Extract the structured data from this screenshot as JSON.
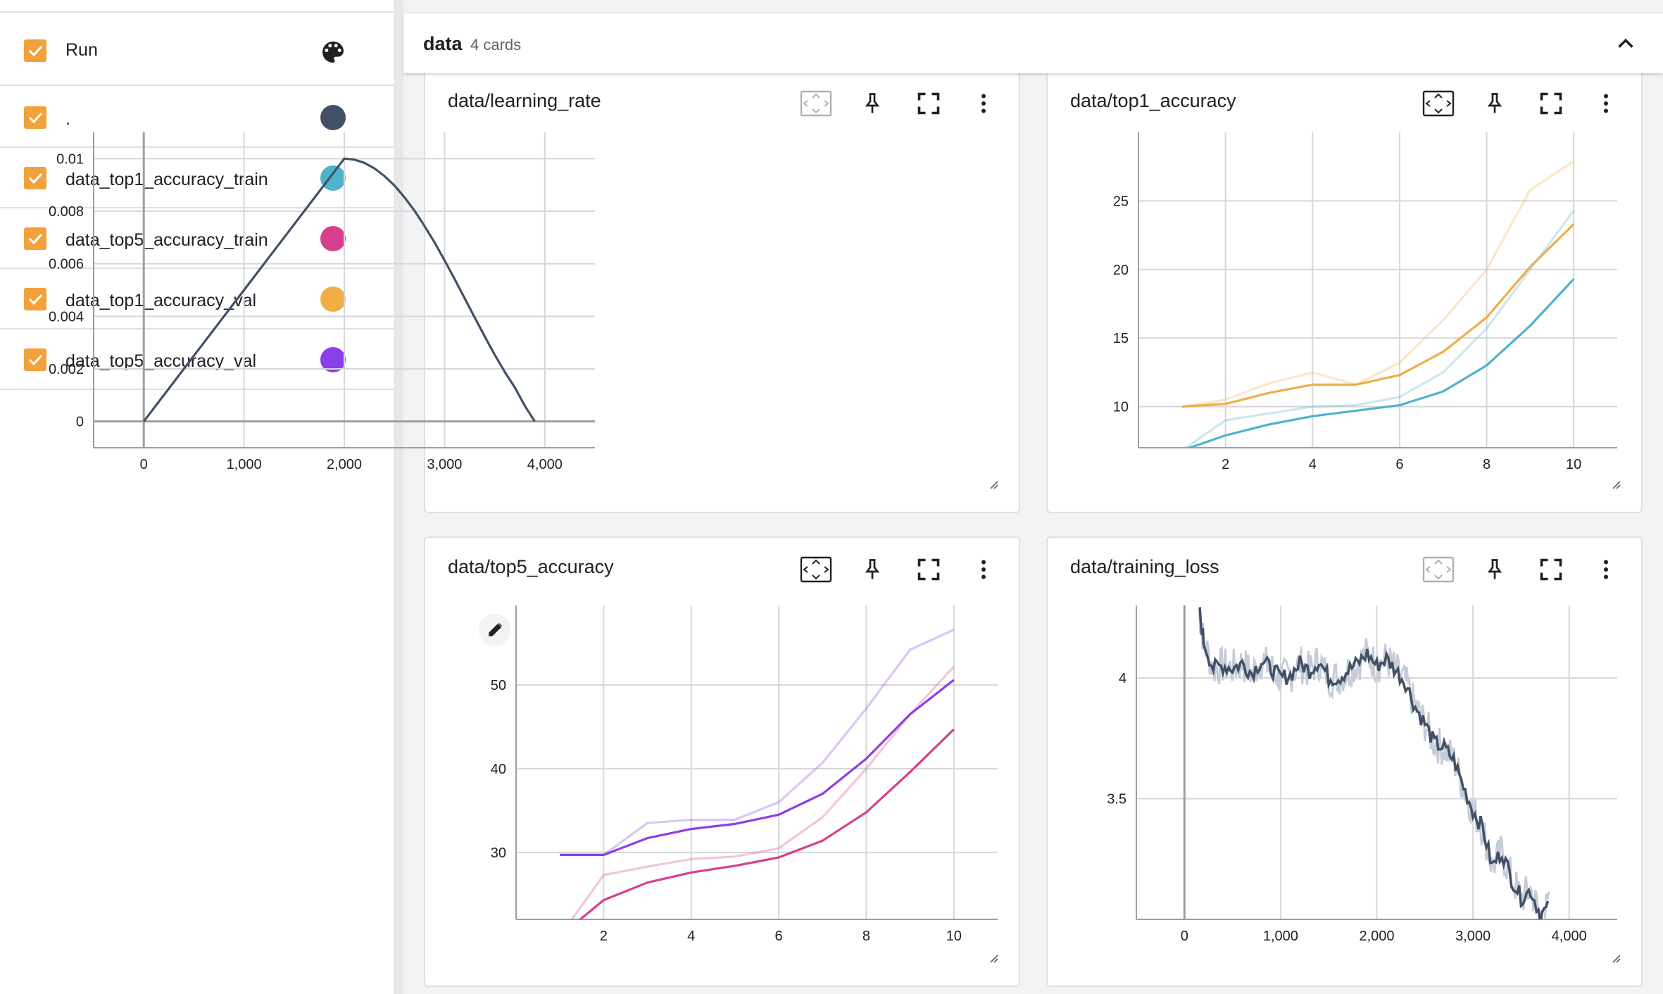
{
  "sidebar": {
    "header_label": "Run",
    "runs": [
      {
        "label": ".",
        "color": "#425066"
      },
      {
        "label": "data_top1_accuracy_train",
        "color": "#4db3cc"
      },
      {
        "label": "data_top5_accuracy_train",
        "color": "#d63f8c"
      },
      {
        "label": "data_top1_accuracy_val",
        "color": "#f0ae45"
      },
      {
        "label": "data_top5_accuracy_val",
        "color": "#8b3fe6"
      }
    ],
    "checkbox_color": "#f2a13b",
    "header_icon": "palette-icon"
  },
  "group": {
    "name": "data",
    "count": "4 cards",
    "collapse_icon": "chevron-up-icon"
  },
  "cards": [
    {
      "title": "data/learning_rate",
      "tools": [
        "fit-domain-icon",
        "pin-icon",
        "fullscreen-icon",
        "more-vert-icon"
      ],
      "chart_data": {
        "type": "line",
        "xlim": [
          -500,
          4500
        ],
        "ylim": [
          -0.001,
          0.011
        ],
        "x_ticks": [
          "0",
          "1,000",
          "2,000",
          "3,000",
          "4,000"
        ],
        "y_ticks": [
          "0",
          "0.002",
          "0.004",
          "0.006",
          "0.008",
          "0.01"
        ],
        "series": [
          {
            "color": "#425066",
            "x": [
              0,
              500,
              1000,
              1500,
              2000,
              2100,
              2200,
              2300,
              2400,
              2500,
              2600,
              2700,
              2800,
              2900,
              3000,
              3100,
              3200,
              3300,
              3400,
              3500,
              3600,
              3700,
              3800,
              3900
            ],
            "y": [
              0,
              0.0025,
              0.005,
              0.0075,
              0.01,
              0.00996,
              0.00984,
              0.00963,
              0.00934,
              0.00898,
              0.00853,
              0.00802,
              0.00744,
              0.00681,
              0.00613,
              0.00542,
              0.00469,
              0.00396,
              0.00324,
              0.00254,
              0.00189,
              0.0013,
              0.0006,
              0
            ]
          }
        ]
      }
    },
    {
      "title": "data/top1_accuracy",
      "tools": [
        "fit-domain-icon",
        "pin-icon",
        "fullscreen-icon",
        "more-vert-icon"
      ],
      "chart_data": {
        "type": "line",
        "xlim": [
          0,
          11
        ],
        "ylim": [
          7,
          30
        ],
        "x_ticks": [
          "2",
          "4",
          "6",
          "8",
          "10"
        ],
        "y_ticks": [
          "10",
          "15",
          "20",
          "25"
        ],
        "series": [
          {
            "color": "#f0ae45",
            "faded": true,
            "x": [
              1,
              2,
              3,
              4,
              5,
              6,
              7,
              8,
              9,
              10
            ],
            "y": [
              10,
              10.5,
              11.7,
              12.5,
              11.6,
              13.2,
              16.3,
              20,
              25.8,
              27.9
            ]
          },
          {
            "color": "#4db3cc",
            "faded": true,
            "x": [
              1,
              2,
              3,
              4,
              5,
              6,
              7,
              8,
              9,
              10
            ],
            "y": [
              6.8,
              9,
              9.5,
              10,
              10.1,
              10.7,
              12.5,
              15.7,
              20,
              24.3
            ]
          },
          {
            "color": "#f0ae45",
            "faded": false,
            "x": [
              1,
              2,
              3,
              4,
              5,
              6,
              7,
              8,
              9,
              10
            ],
            "y": [
              10,
              10.2,
              11,
              11.6,
              11.6,
              12.3,
              14,
              16.5,
              20.2,
              23.3
            ]
          },
          {
            "color": "#4db3cc",
            "faded": false,
            "x": [
              1,
              2,
              3,
              4,
              5,
              6,
              7,
              8,
              9,
              10
            ],
            "y": [
              6.8,
              7.9,
              8.7,
              9.3,
              9.7,
              10.1,
              11.1,
              13,
              15.9,
              19.3
            ]
          }
        ]
      }
    },
    {
      "title": "data/top5_accuracy",
      "tools": [
        "fit-domain-icon",
        "pin-icon",
        "fullscreen-icon",
        "more-vert-icon"
      ],
      "edit_icon": "pencil-icon",
      "chart_data": {
        "type": "line",
        "xlim": [
          0,
          11
        ],
        "ylim": [
          22,
          59.5
        ],
        "x_ticks": [
          "2",
          "4",
          "6",
          "8",
          "10"
        ],
        "y_ticks": [
          "30",
          "40",
          "50"
        ],
        "series": [
          {
            "color": "#8b3fe6",
            "faded": true,
            "x": [
              1,
              2,
              3,
              4,
              5,
              6,
              7,
              8,
              9,
              10
            ],
            "y": [
              29.7,
              29.7,
              33.5,
              33.9,
              33.9,
              36,
              40.7,
              47.2,
              54.2,
              56.6
            ]
          },
          {
            "color": "#d63f8c",
            "faded": true,
            "x": [
              1,
              2,
              3,
              4,
              5,
              6,
              7,
              8,
              9,
              10
            ],
            "y": [
              20,
              27.3,
              28.3,
              29.2,
              29.5,
              30.5,
              34.2,
              40,
              46.5,
              52.2
            ]
          },
          {
            "color": "#8b3fe6",
            "faded": false,
            "x": [
              1,
              2,
              3,
              4,
              5,
              6,
              7,
              8,
              9,
              10
            ],
            "y": [
              29.7,
              29.7,
              31.7,
              32.8,
              33.4,
              34.5,
              37,
              41.2,
              46.5,
              50.6
            ]
          },
          {
            "color": "#d63f8c",
            "faded": false,
            "x": [
              1,
              2,
              3,
              4,
              5,
              6,
              7,
              8,
              9,
              10
            ],
            "y": [
              20,
              24.3,
              26.4,
              27.6,
              28.4,
              29.4,
              31.4,
              34.8,
              39.6,
              44.7
            ]
          }
        ]
      }
    },
    {
      "title": "data/training_loss",
      "tools": [
        "fit-domain-icon",
        "pin-icon",
        "fullscreen-icon",
        "more-vert-icon"
      ],
      "chart_data": {
        "type": "line",
        "xlim": [
          -500,
          4500
        ],
        "ylim": [
          3.0,
          4.3
        ],
        "x_ticks": [
          "0",
          "1,000",
          "2,000",
          "3,000",
          "4,000"
        ],
        "y_ticks": [
          "3.5",
          "4"
        ],
        "series": [
          {
            "color": "#425066",
            "noisy": true,
            "x": [
              150,
              200,
              300,
              400,
              500,
              600,
              700,
              800,
              900,
              1000,
              1100,
              1200,
              1300,
              1400,
              1500,
              1600,
              1700,
              1800,
              1900,
              2000,
              2100,
              2200,
              2300,
              2400,
              2500,
              2600,
              2700,
              2800,
              2900,
              3000,
              3100,
              3200,
              3300,
              3400,
              3500,
              3600,
              3700,
              3800
            ],
            "y": [
              4.29,
              4.15,
              4.04,
              4.05,
              4.04,
              4.06,
              4.02,
              4.07,
              4.04,
              4.0,
              4.01,
              4.06,
              4.03,
              4.07,
              4.0,
              4.0,
              4.03,
              4.06,
              4.1,
              4.05,
              4.08,
              4.03,
              3.98,
              3.88,
              3.81,
              3.73,
              3.71,
              3.66,
              3.55,
              3.45,
              3.38,
              3.22,
              3.28,
              3.17,
              3.09,
              3.12,
              3.02,
              3.05
            ]
          }
        ]
      }
    }
  ]
}
